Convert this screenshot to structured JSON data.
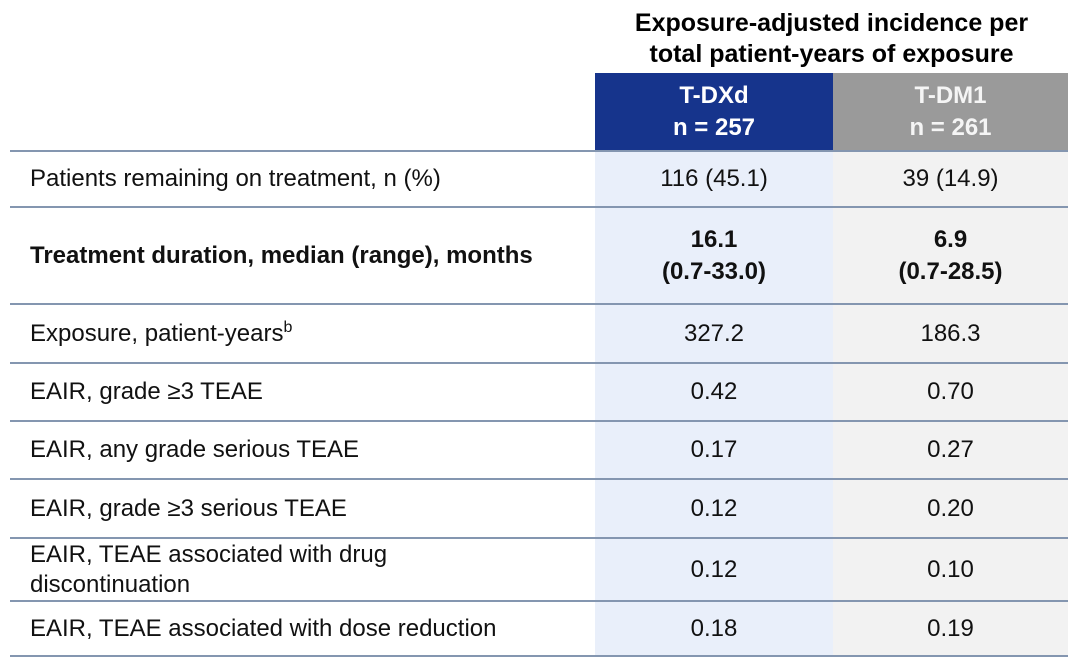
{
  "colors": {
    "tdxd_header_bg": "#16348c",
    "tdm1_header_bg": "#9a9a9a",
    "tdxd_band_bg": "#e9effa",
    "tdm1_band_bg": "#f2f2f2",
    "rule_line": "#8496b0",
    "header_text": "#ffffff",
    "body_text": "#111111"
  },
  "header": {
    "title": "Exposure-adjusted incidence per\ntotal patient-years of exposure",
    "columns": [
      {
        "name": "T-DXd",
        "n": "T-DXd\nn = 257"
      },
      {
        "name": "T-DM1",
        "n": "T-DM1\nn = 261"
      }
    ]
  },
  "table": {
    "rows": [
      {
        "label": "Patients remaining on treatment, n (%)",
        "tdxd": "116 (45.1)",
        "tdm1": "39 (14.9)"
      },
      {
        "label": "Treatment duration, median (range), months",
        "tdxd": "16.1\n(0.7-33.0)",
        "tdm1": "6.9\n(0.7-28.5)"
      },
      {
        "label": "Exposure, patient-years",
        "label_sup": "b",
        "tdxd": "327.2",
        "tdm1": "186.3"
      },
      {
        "label": "EAIR, grade ≥3 TEAE",
        "tdxd": "0.42",
        "tdm1": "0.70"
      },
      {
        "label": "EAIR, any grade serious TEAE",
        "tdxd": "0.17",
        "tdm1": "0.27"
      },
      {
        "label": "EAIR, grade ≥3 serious TEAE",
        "tdxd": "0.12",
        "tdm1": "0.20"
      },
      {
        "label": "EAIR, TEAE associated with drug\ndiscontinuation",
        "tdxd": "0.12",
        "tdm1": "0.10"
      },
      {
        "label": "EAIR, TEAE associated with dose reduction",
        "tdxd": "0.18",
        "tdm1": "0.19"
      }
    ]
  }
}
